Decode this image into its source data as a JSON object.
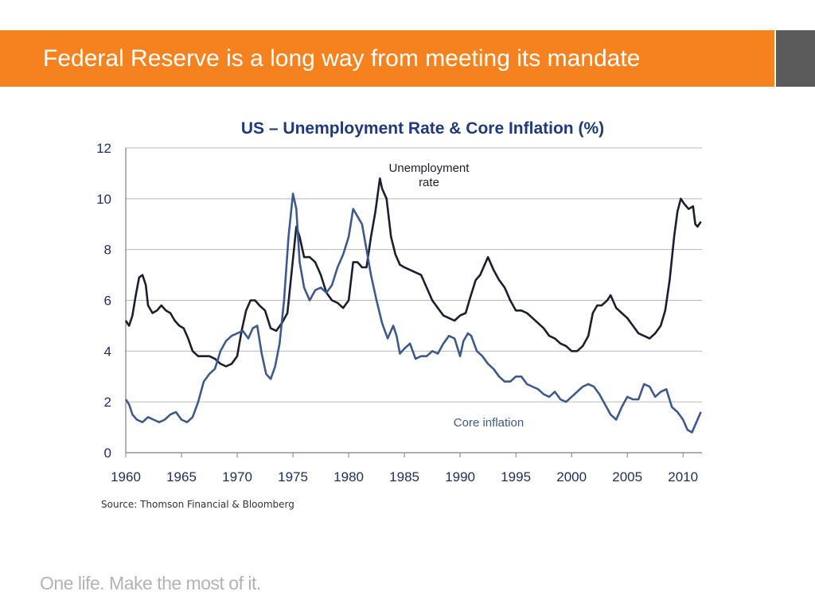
{
  "slide": {
    "title": "Federal Reserve is a long way from meeting its mandate",
    "source": "Source: Thomson Financial & Bloomberg",
    "tagline": "One life. Make the most of it.",
    "colors": {
      "header": "#f5821f",
      "header_side": "#5b5b5b",
      "tagline": "#b3b3b3"
    }
  },
  "chart_data": {
    "type": "line",
    "title": "US – Unemployment Rate & Core Inflation (%)",
    "title_color": "#1f3a7a",
    "xlabel": "",
    "ylabel": "",
    "xlim": [
      1960,
      2011.7
    ],
    "ylim": [
      0,
      12
    ],
    "x_ticks": [
      1960,
      1965,
      1970,
      1975,
      1980,
      1985,
      1990,
      1995,
      2000,
      2005,
      2010
    ],
    "y_ticks": [
      0,
      2,
      4,
      6,
      8,
      10,
      12
    ],
    "grid": "horizontal",
    "legend": "none",
    "annotations": [
      {
        "lines": [
          "Unemployment",
          "rate"
        ],
        "series": "unemployment"
      },
      {
        "lines": [
          "Core inflation"
        ],
        "series": "core_inflation"
      }
    ],
    "series": [
      {
        "id": "unemployment",
        "color": "#1b1f2e",
        "points": [
          [
            1960.0,
            5.2
          ],
          [
            1960.3,
            5.0
          ],
          [
            1960.6,
            5.4
          ],
          [
            1960.9,
            6.2
          ],
          [
            1961.2,
            6.9
          ],
          [
            1961.5,
            7.0
          ],
          [
            1961.8,
            6.6
          ],
          [
            1962.0,
            5.8
          ],
          [
            1962.4,
            5.5
          ],
          [
            1962.8,
            5.6
          ],
          [
            1963.2,
            5.8
          ],
          [
            1963.6,
            5.6
          ],
          [
            1964.0,
            5.5
          ],
          [
            1964.4,
            5.2
          ],
          [
            1964.8,
            5.0
          ],
          [
            1965.2,
            4.9
          ],
          [
            1965.6,
            4.5
          ],
          [
            1966.0,
            4.0
          ],
          [
            1966.5,
            3.8
          ],
          [
            1967.0,
            3.8
          ],
          [
            1967.5,
            3.8
          ],
          [
            1968.0,
            3.7
          ],
          [
            1968.5,
            3.5
          ],
          [
            1969.0,
            3.4
          ],
          [
            1969.5,
            3.5
          ],
          [
            1970.0,
            3.8
          ],
          [
            1970.4,
            4.8
          ],
          [
            1970.8,
            5.6
          ],
          [
            1971.2,
            6.0
          ],
          [
            1971.6,
            6.0
          ],
          [
            1972.0,
            5.8
          ],
          [
            1972.5,
            5.6
          ],
          [
            1973.0,
            4.9
          ],
          [
            1973.5,
            4.8
          ],
          [
            1974.0,
            5.1
          ],
          [
            1974.5,
            5.5
          ],
          [
            1974.9,
            7.2
          ],
          [
            1975.3,
            8.9
          ],
          [
            1975.6,
            8.5
          ],
          [
            1976.0,
            7.7
          ],
          [
            1976.5,
            7.7
          ],
          [
            1977.0,
            7.5
          ],
          [
            1977.5,
            7.0
          ],
          [
            1978.0,
            6.3
          ],
          [
            1978.5,
            6.0
          ],
          [
            1979.0,
            5.9
          ],
          [
            1979.5,
            5.7
          ],
          [
            1980.0,
            6.0
          ],
          [
            1980.4,
            7.5
          ],
          [
            1980.8,
            7.5
          ],
          [
            1981.2,
            7.3
          ],
          [
            1981.6,
            7.3
          ],
          [
            1982.0,
            8.5
          ],
          [
            1982.4,
            9.5
          ],
          [
            1982.8,
            10.8
          ],
          [
            1983.0,
            10.4
          ],
          [
            1983.4,
            10.0
          ],
          [
            1983.8,
            8.5
          ],
          [
            1984.2,
            7.8
          ],
          [
            1984.6,
            7.4
          ],
          [
            1985.0,
            7.3
          ],
          [
            1985.5,
            7.2
          ],
          [
            1986.0,
            7.1
          ],
          [
            1986.5,
            7.0
          ],
          [
            1987.0,
            6.5
          ],
          [
            1987.5,
            6.0
          ],
          [
            1988.0,
            5.7
          ],
          [
            1988.5,
            5.4
          ],
          [
            1989.0,
            5.3
          ],
          [
            1989.5,
            5.2
          ],
          [
            1990.0,
            5.4
          ],
          [
            1990.5,
            5.5
          ],
          [
            1990.9,
            6.1
          ],
          [
            1991.4,
            6.8
          ],
          [
            1991.8,
            7.0
          ],
          [
            1992.2,
            7.4
          ],
          [
            1992.5,
            7.7
          ],
          [
            1993.0,
            7.2
          ],
          [
            1993.5,
            6.8
          ],
          [
            1994.0,
            6.5
          ],
          [
            1994.5,
            6.0
          ],
          [
            1995.0,
            5.6
          ],
          [
            1995.5,
            5.6
          ],
          [
            1996.0,
            5.5
          ],
          [
            1996.5,
            5.3
          ],
          [
            1997.0,
            5.1
          ],
          [
            1997.5,
            4.9
          ],
          [
            1998.0,
            4.6
          ],
          [
            1998.5,
            4.5
          ],
          [
            1999.0,
            4.3
          ],
          [
            1999.5,
            4.2
          ],
          [
            2000.0,
            4.0
          ],
          [
            2000.5,
            4.0
          ],
          [
            2001.0,
            4.2
          ],
          [
            2001.5,
            4.6
          ],
          [
            2001.9,
            5.5
          ],
          [
            2002.3,
            5.8
          ],
          [
            2002.7,
            5.8
          ],
          [
            2003.2,
            6.0
          ],
          [
            2003.5,
            6.2
          ],
          [
            2004.0,
            5.7
          ],
          [
            2004.5,
            5.5
          ],
          [
            2005.0,
            5.3
          ],
          [
            2005.5,
            5.0
          ],
          [
            2006.0,
            4.7
          ],
          [
            2006.5,
            4.6
          ],
          [
            2007.0,
            4.5
          ],
          [
            2007.5,
            4.7
          ],
          [
            2008.0,
            5.0
          ],
          [
            2008.4,
            5.6
          ],
          [
            2008.8,
            6.8
          ],
          [
            2009.2,
            8.5
          ],
          [
            2009.5,
            9.5
          ],
          [
            2009.8,
            10.0
          ],
          [
            2010.1,
            9.8
          ],
          [
            2010.5,
            9.6
          ],
          [
            2010.9,
            9.7
          ],
          [
            2011.1,
            9.0
          ],
          [
            2011.3,
            8.9
          ],
          [
            2011.6,
            9.1
          ]
        ]
      },
      {
        "id": "core_inflation",
        "color": "#3e5a8a",
        "points": [
          [
            1960.0,
            2.1
          ],
          [
            1960.3,
            1.9
          ],
          [
            1960.6,
            1.5
          ],
          [
            1961.0,
            1.3
          ],
          [
            1961.5,
            1.2
          ],
          [
            1962.0,
            1.4
          ],
          [
            1962.5,
            1.3
          ],
          [
            1963.0,
            1.2
          ],
          [
            1963.5,
            1.3
          ],
          [
            1964.0,
            1.5
          ],
          [
            1964.5,
            1.6
          ],
          [
            1965.0,
            1.3
          ],
          [
            1965.5,
            1.2
          ],
          [
            1966.0,
            1.4
          ],
          [
            1966.5,
            2.0
          ],
          [
            1967.0,
            2.8
          ],
          [
            1967.5,
            3.1
          ],
          [
            1968.0,
            3.3
          ],
          [
            1968.5,
            4.0
          ],
          [
            1969.0,
            4.4
          ],
          [
            1969.5,
            4.6
          ],
          [
            1970.0,
            4.7
          ],
          [
            1970.5,
            4.8
          ],
          [
            1971.0,
            4.5
          ],
          [
            1971.4,
            4.9
          ],
          [
            1971.8,
            5.0
          ],
          [
            1972.2,
            3.9
          ],
          [
            1972.6,
            3.1
          ],
          [
            1973.0,
            2.9
          ],
          [
            1973.4,
            3.4
          ],
          [
            1973.8,
            4.3
          ],
          [
            1974.2,
            6.0
          ],
          [
            1974.6,
            8.5
          ],
          [
            1975.0,
            10.2
          ],
          [
            1975.3,
            9.6
          ],
          [
            1975.6,
            7.5
          ],
          [
            1976.0,
            6.5
          ],
          [
            1976.5,
            6.0
          ],
          [
            1977.0,
            6.4
          ],
          [
            1977.5,
            6.5
          ],
          [
            1978.0,
            6.3
          ],
          [
            1978.5,
            6.6
          ],
          [
            1979.0,
            7.3
          ],
          [
            1979.5,
            7.8
          ],
          [
            1980.0,
            8.5
          ],
          [
            1980.4,
            9.6
          ],
          [
            1980.8,
            9.3
          ],
          [
            1981.2,
            9.0
          ],
          [
            1981.6,
            8.0
          ],
          [
            1982.0,
            7.0
          ],
          [
            1982.5,
            6.0
          ],
          [
            1983.0,
            5.1
          ],
          [
            1983.5,
            4.5
          ],
          [
            1984.0,
            5.0
          ],
          [
            1984.3,
            4.6
          ],
          [
            1984.6,
            3.9
          ],
          [
            1985.0,
            4.1
          ],
          [
            1985.5,
            4.3
          ],
          [
            1986.0,
            3.7
          ],
          [
            1986.5,
            3.8
          ],
          [
            1987.0,
            3.8
          ],
          [
            1987.5,
            4.0
          ],
          [
            1988.0,
            3.9
          ],
          [
            1988.5,
            4.3
          ],
          [
            1989.0,
            4.6
          ],
          [
            1989.5,
            4.5
          ],
          [
            1990.0,
            3.8
          ],
          [
            1990.3,
            4.4
          ],
          [
            1990.7,
            4.7
          ],
          [
            1991.0,
            4.6
          ],
          [
            1991.5,
            4.0
          ],
          [
            1992.0,
            3.8
          ],
          [
            1992.5,
            3.5
          ],
          [
            1993.0,
            3.3
          ],
          [
            1993.5,
            3.0
          ],
          [
            1994.0,
            2.8
          ],
          [
            1994.5,
            2.8
          ],
          [
            1995.0,
            3.0
          ],
          [
            1995.5,
            3.0
          ],
          [
            1996.0,
            2.7
          ],
          [
            1996.5,
            2.6
          ],
          [
            1997.0,
            2.5
          ],
          [
            1997.5,
            2.3
          ],
          [
            1998.0,
            2.2
          ],
          [
            1998.5,
            2.4
          ],
          [
            1999.0,
            2.1
          ],
          [
            1999.5,
            2.0
          ],
          [
            2000.0,
            2.2
          ],
          [
            2000.5,
            2.4
          ],
          [
            2001.0,
            2.6
          ],
          [
            2001.5,
            2.7
          ],
          [
            2002.0,
            2.6
          ],
          [
            2002.5,
            2.3
          ],
          [
            2003.0,
            1.9
          ],
          [
            2003.5,
            1.5
          ],
          [
            2004.0,
            1.3
          ],
          [
            2004.5,
            1.8
          ],
          [
            2005.0,
            2.2
          ],
          [
            2005.5,
            2.1
          ],
          [
            2006.0,
            2.1
          ],
          [
            2006.5,
            2.7
          ],
          [
            2007.0,
            2.6
          ],
          [
            2007.5,
            2.2
          ],
          [
            2008.0,
            2.4
          ],
          [
            2008.5,
            2.5
          ],
          [
            2009.0,
            1.8
          ],
          [
            2009.5,
            1.6
          ],
          [
            2010.0,
            1.3
          ],
          [
            2010.4,
            0.9
          ],
          [
            2010.8,
            0.8
          ],
          [
            2011.2,
            1.2
          ],
          [
            2011.6,
            1.6
          ]
        ]
      }
    ]
  }
}
